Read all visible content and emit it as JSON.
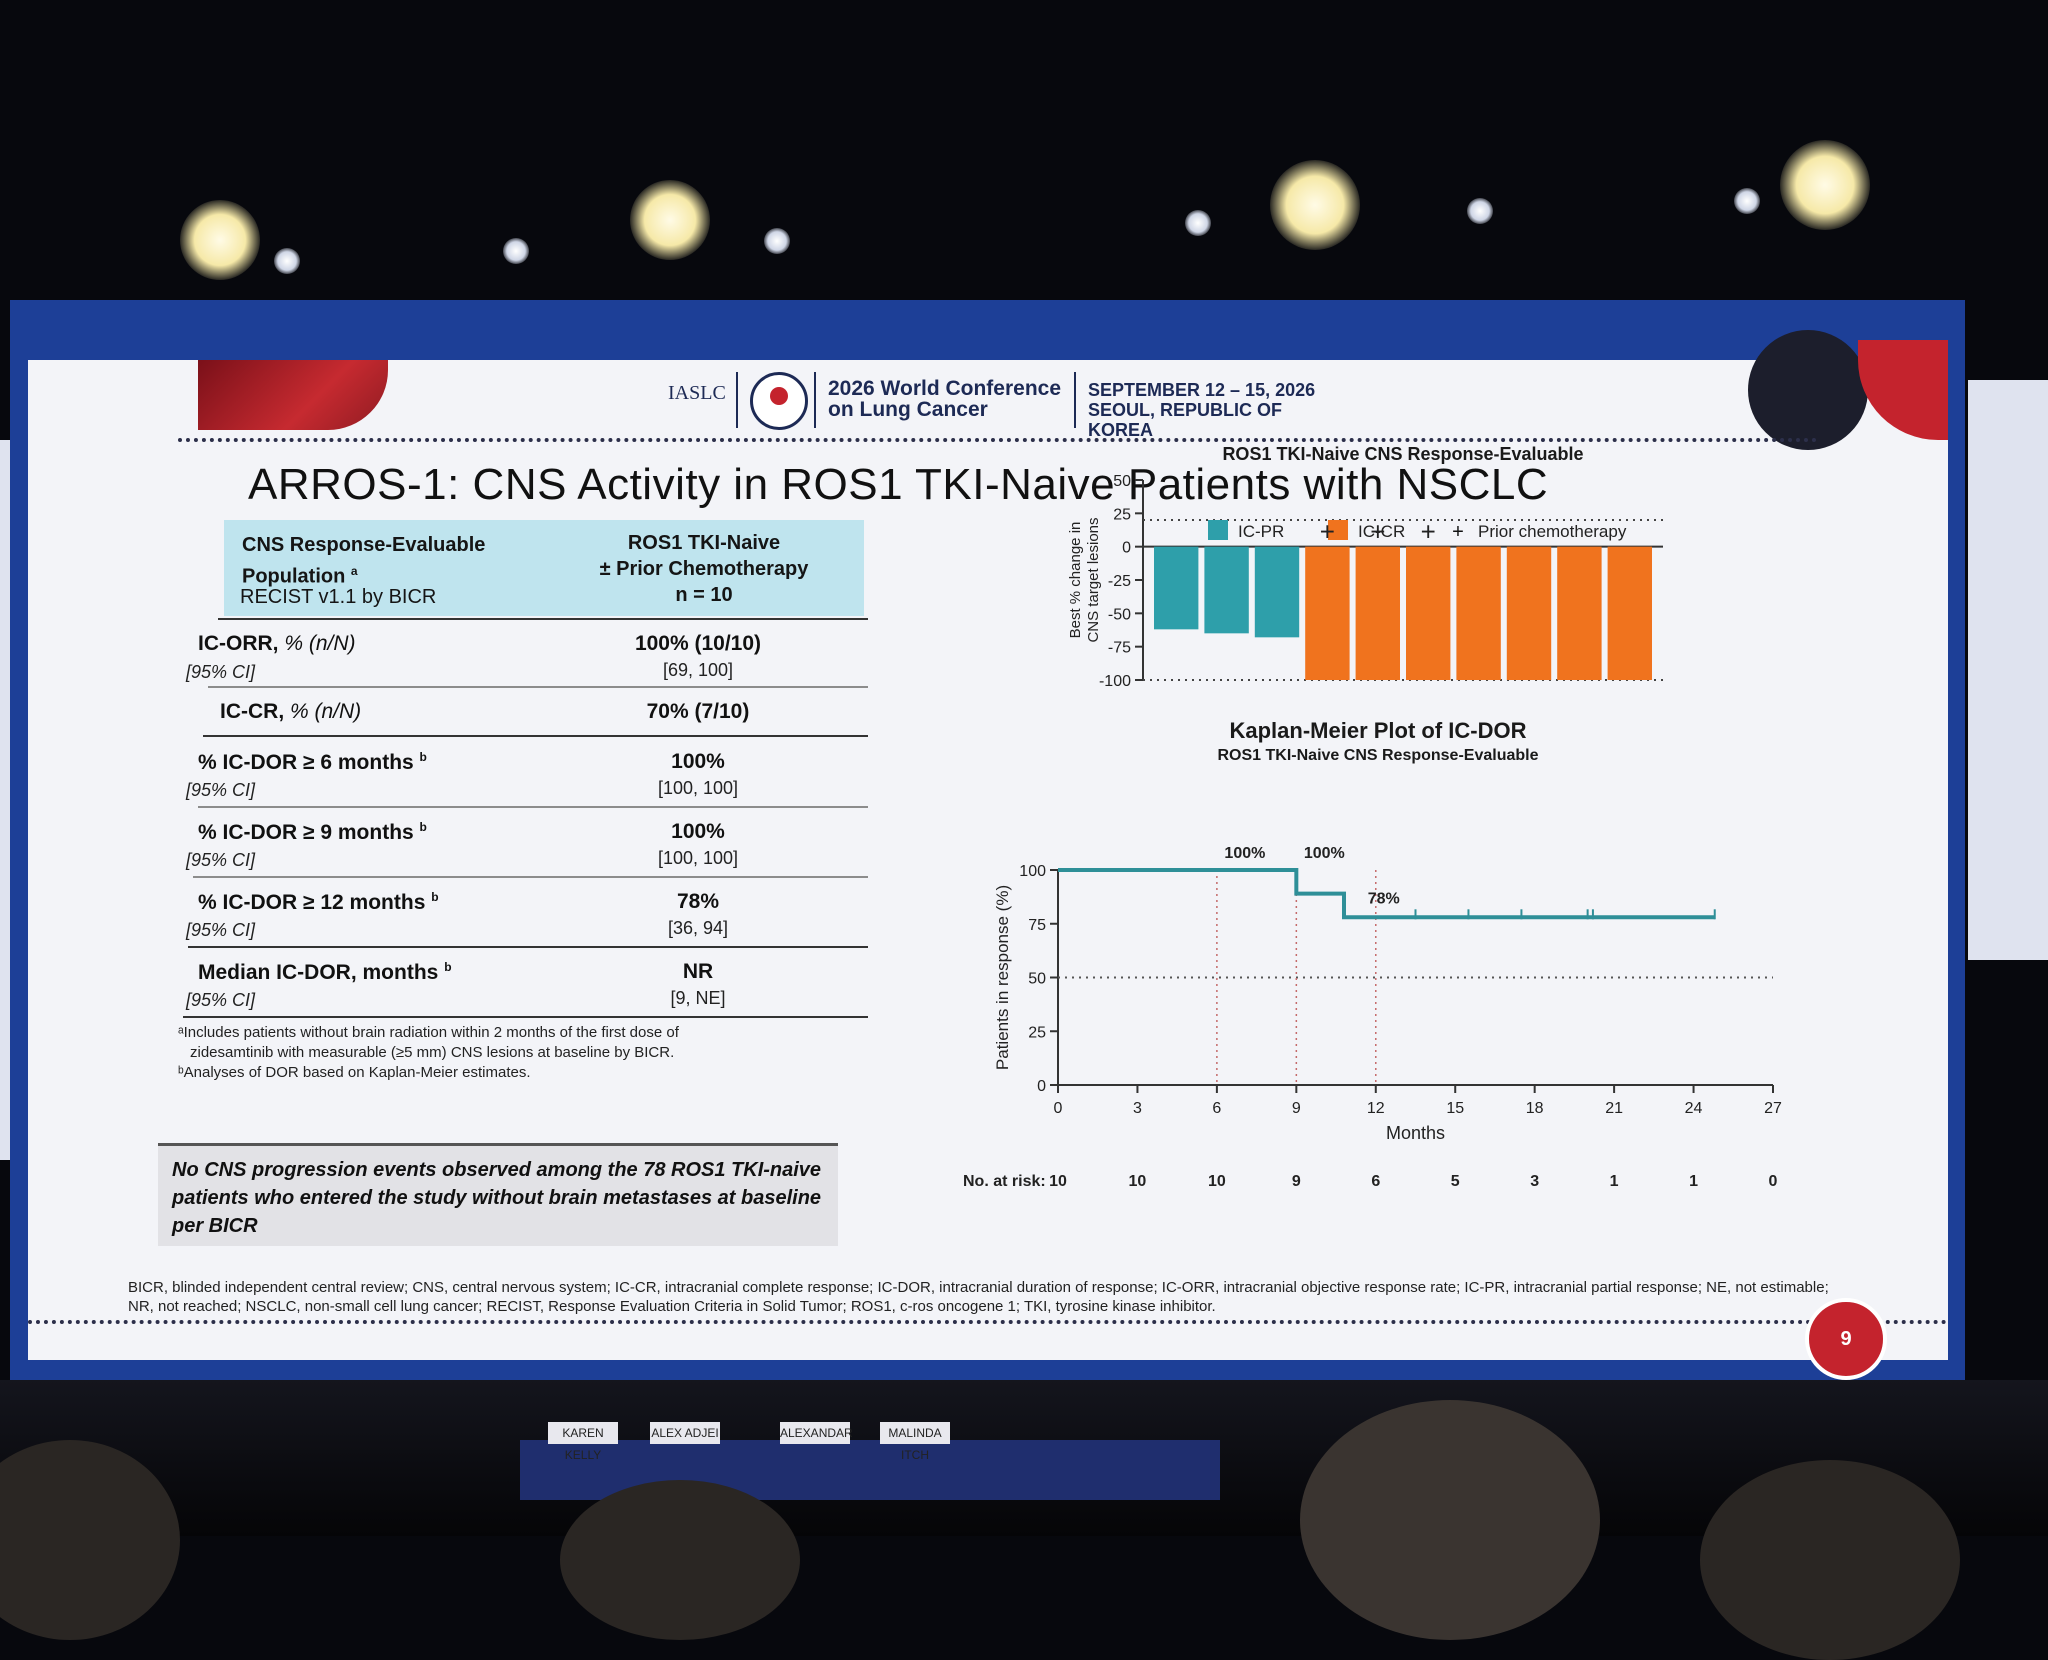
{
  "conference": {
    "org_logo": "IASLC",
    "title_line1": "2026 World Conference",
    "title_line2": "on Lung Cancer",
    "dates": "SEPTEMBER 12 – 15, 2026",
    "location": "SEOUL, REPUBLIC OF KOREA"
  },
  "slide": {
    "title": "ARROS-1: CNS Activity in ROS1 TKI-Naive Patients with NSCLC",
    "page_number": "9"
  },
  "table": {
    "header_left_line1": "CNS Response-Evaluable",
    "header_left_line2": "Population",
    "header_left_sup": "a",
    "header_left_sub": "RECIST v1.1 by BICR",
    "header_right_line1": "ROS1 TKI-Naive",
    "header_right_line2": "± Prior Chemotherapy",
    "header_right_line3": "n = 10",
    "rows": [
      {
        "label": "IC-ORR,",
        "unit": " % (n/N)",
        "sup": "",
        "ci_label": "[95% CI]",
        "value": "100% (10/10)",
        "range": "[69, 100]"
      },
      {
        "label": "IC-CR,",
        "unit": " % (n/N)",
        "sup": "",
        "ci_label": "",
        "value": "70% (7/10)",
        "range": ""
      },
      {
        "label": "% IC-DOR ≥ 6 months",
        "unit": "",
        "sup": "b",
        "ci_label": "[95% CI]",
        "value": "100%",
        "range": "[100, 100]"
      },
      {
        "label": "% IC-DOR ≥ 9 months",
        "unit": "",
        "sup": "b",
        "ci_label": "[95% CI]",
        "value": "100%",
        "range": "[100, 100]"
      },
      {
        "label": "% IC-DOR ≥ 12 months",
        "unit": "",
        "sup": "b",
        "ci_label": "[95% CI]",
        "value": "78%",
        "range": "[36, 94]"
      },
      {
        "label": "Median IC-DOR, months",
        "unit": "",
        "sup": "b",
        "ci_label": "[95% CI]",
        "value": "NR",
        "range": "[9, NE]"
      }
    ],
    "footnote_a_line1": "ᵃIncludes patients without brain radiation within 2 months of the first dose of",
    "footnote_a_line2": "zidesamtinib with measurable (≥5 mm) CNS lesions at baseline by BICR.",
    "footnote_b": "ᵇAnalyses of DOR based on Kaplan-Meier estimates."
  },
  "callout": "No CNS progression events observed among the 78 ROS1 TKI-naive patients who entered the study without brain metastases at baseline per BICR",
  "abbreviations": "BICR, blinded independent central review; CNS, central nervous system; IC-CR, intracranial complete response; IC-DOR, intracranial duration of response; IC-ORR, intracranial objective response rate; IC-PR, intracranial partial response; NE, not estimable; NR, not reached; NSCLC, non-small cell lung cancer; RECIST, Response Evaluation Criteria in Solid Tumor; ROS1, c-ros oncogene 1; TKI, tyrosine kinase inhibitor.",
  "audience": {
    "nameplates": [
      "KAREN KELLY",
      "ALEX ADJEI",
      "ALEXANDAR",
      "MALINDA ITCH"
    ]
  },
  "chart_data": [
    {
      "type": "bar",
      "title": "ROS1 TKI-Naive CNS Response-Evaluable",
      "ylabel_line1": "Best % change in",
      "ylabel_line2": "CNS target lesions",
      "ylim": [
        -100,
        50
      ],
      "yticks": [
        "50",
        "25",
        "0",
        "-25",
        "-50",
        "-75",
        "-100"
      ],
      "ytick_values": [
        50,
        25,
        0,
        -25,
        -50,
        -75,
        -100
      ],
      "reference_line": 20,
      "legend": [
        {
          "name": "IC-PR",
          "color": "#2e9faa"
        },
        {
          "name": "IC-CR",
          "color": "#f0731e"
        },
        {
          "name": "Prior chemotherapy",
          "marker": "+"
        }
      ],
      "values": [
        -62,
        -65,
        -68,
        -100,
        -100,
        -100,
        -100,
        -100,
        -100,
        -100
      ],
      "response": [
        "IC-PR",
        "IC-PR",
        "IC-PR",
        "IC-CR",
        "IC-CR",
        "IC-CR",
        "IC-CR",
        "IC-CR",
        "IC-CR",
        "IC-CR"
      ],
      "prior_chemo": [
        false,
        false,
        false,
        true,
        true,
        true,
        false,
        false,
        false,
        false
      ],
      "prior_chemo_symbol": "+",
      "legend_placement": "top"
    },
    {
      "type": "line",
      "title": "Kaplan-Meier Plot of IC-DOR",
      "subtitle": "ROS1 TKI-Naive CNS Response-Evaluable",
      "xlabel": "Months",
      "ylabel": "Patients in response (%)",
      "xlim": [
        0,
        27
      ],
      "ylim": [
        0,
        100
      ],
      "xticks": [
        "0",
        "3",
        "6",
        "9",
        "12",
        "15",
        "18",
        "21",
        "24",
        "27"
      ],
      "xtick_values": [
        0,
        3,
        6,
        9,
        12,
        15,
        18,
        21,
        24,
        27
      ],
      "yticks": [
        "0",
        "25",
        "50",
        "75",
        "100"
      ],
      "ytick_values": [
        0,
        25,
        50,
        75,
        100
      ],
      "series": [
        {
          "x": [
            0,
            9,
            9,
            10.8,
            10.8,
            24.8
          ],
          "y": [
            100,
            100,
            89,
            89,
            78,
            78
          ]
        }
      ],
      "censor_x": [
        13.5,
        15.5,
        17.5,
        20,
        20.2
      ],
      "annotations": [
        {
          "text": "100%",
          "x": 6,
          "y": 100
        },
        {
          "text": "100%",
          "x": 9,
          "y": 100
        },
        {
          "text": "78%",
          "x": 12,
          "y": 78
        }
      ],
      "marker_lines_x": [
        6,
        9,
        12
      ],
      "reference_y": 50,
      "risk_label": "No. at risk:",
      "at_risk": [
        "10",
        "10",
        "10",
        "9",
        "6",
        "5",
        "3",
        "1",
        "1",
        "0"
      ]
    }
  ]
}
